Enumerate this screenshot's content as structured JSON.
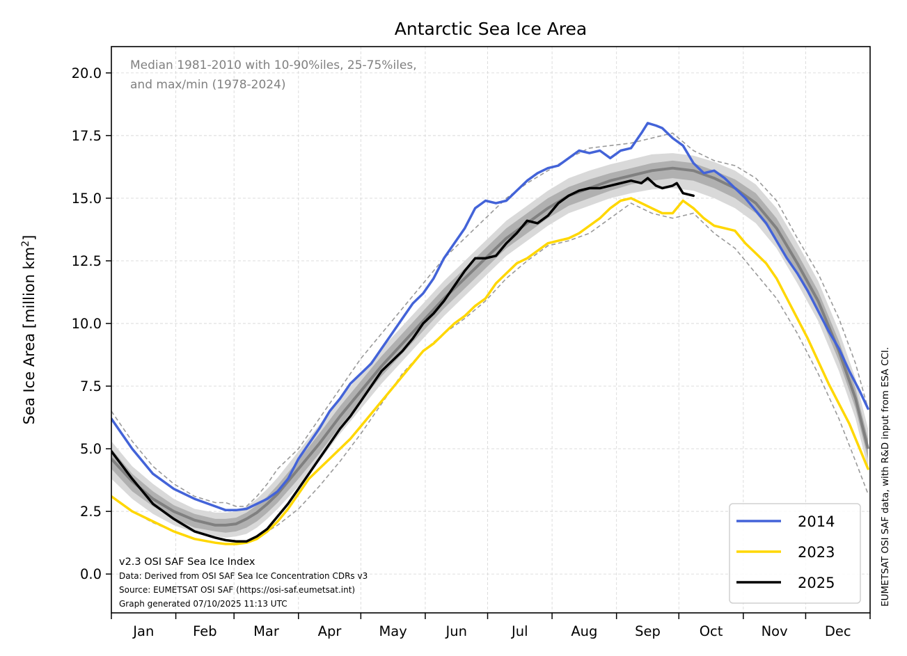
{
  "chart_data": {
    "type": "line",
    "title": "Antarctic Sea Ice Area",
    "ylabel": "Sea Ice Area [million km²]",
    "ylabel_main": "Sea Ice Area [million km",
    "ylabel_sup": "2",
    "ylabel_end": "]",
    "xlabel": "",
    "xlim_days": [
      0,
      365
    ],
    "ylim": [
      -1.55,
      21.05
    ],
    "yticks": [
      0.0,
      2.5,
      5.0,
      7.5,
      10.0,
      12.5,
      15.0,
      17.5,
      20.0
    ],
    "ytick_labels": [
      "0.0",
      "2.5",
      "5.0",
      "7.5",
      "10.0",
      "12.5",
      "15.0",
      "17.5",
      "20.0"
    ],
    "month_labels": [
      "Jan",
      "Feb",
      "Mar",
      "Apr",
      "May",
      "Jun",
      "Jul",
      "Aug",
      "Sep",
      "Oct",
      "Nov",
      "Dec"
    ],
    "month_start_days": [
      0,
      31,
      59,
      90,
      120,
      151,
      181,
      212,
      243,
      273,
      304,
      334,
      365
    ],
    "grid": true,
    "annotation": [
      "Median 1981-2010 with 10-90%iles, 25-75%iles,",
      "and max/min (1978-2024)"
    ],
    "credits": [
      "v2.3 OSI SAF Sea Ice Index",
      "Data: Derived from OSI SAF Sea Ice Concentration CDRs v3",
      "Source: EUMETSAT OSI SAF (https://osi-saf.eumetsat.int)",
      "Graph generated 07/10/2025 11:13 UTC"
    ],
    "side_text": "EUMETSAT OSI SAF data, with R&D input from ESA CCI.",
    "legend_position": "lower-right",
    "climatology": {
      "days": [
        0,
        10,
        20,
        30,
        40,
        50,
        55,
        60,
        65,
        70,
        75,
        80,
        90,
        100,
        110,
        120,
        130,
        140,
        150,
        160,
        170,
        180,
        190,
        200,
        210,
        220,
        230,
        240,
        250,
        260,
        270,
        280,
        290,
        300,
        310,
        320,
        330,
        340,
        350,
        358,
        364
      ],
      "median": [
        4.6,
        3.7,
        3.0,
        2.5,
        2.15,
        1.95,
        1.95,
        2.0,
        2.2,
        2.45,
        2.8,
        3.2,
        4.2,
        5.2,
        6.3,
        7.3,
        8.3,
        9.2,
        10.1,
        11.0,
        11.8,
        12.6,
        13.4,
        14.0,
        14.6,
        15.1,
        15.4,
        15.7,
        15.9,
        16.1,
        16.2,
        16.1,
        15.8,
        15.4,
        14.8,
        13.8,
        12.4,
        10.9,
        8.9,
        7.0,
        5.0
      ],
      "p25": [
        4.2,
        3.3,
        2.7,
        2.2,
        1.85,
        1.7,
        1.65,
        1.7,
        1.85,
        2.1,
        2.45,
        2.85,
        3.8,
        4.8,
        5.9,
        6.9,
        7.9,
        8.8,
        9.7,
        10.6,
        11.4,
        12.2,
        13.0,
        13.6,
        14.2,
        14.7,
        15.0,
        15.3,
        15.55,
        15.7,
        15.8,
        15.7,
        15.4,
        15.0,
        14.4,
        13.4,
        12.0,
        10.5,
        8.5,
        6.6,
        4.6
      ],
      "p75": [
        5.0,
        4.0,
        3.3,
        2.75,
        2.4,
        2.2,
        2.2,
        2.25,
        2.45,
        2.75,
        3.1,
        3.55,
        4.55,
        5.6,
        6.7,
        7.7,
        8.7,
        9.6,
        10.5,
        11.4,
        12.2,
        13.0,
        13.8,
        14.4,
        15.0,
        15.45,
        15.75,
        16.0,
        16.2,
        16.4,
        16.5,
        16.4,
        16.1,
        15.75,
        15.2,
        14.2,
        12.8,
        11.3,
        9.3,
        7.4,
        5.4
      ],
      "p10": [
        3.8,
        3.0,
        2.4,
        1.95,
        1.65,
        1.5,
        1.45,
        1.5,
        1.6,
        1.85,
        2.2,
        2.6,
        3.5,
        4.5,
        5.6,
        6.6,
        7.6,
        8.5,
        9.4,
        10.3,
        11.1,
        11.9,
        12.7,
        13.3,
        13.9,
        14.4,
        14.7,
        15.0,
        15.2,
        15.35,
        15.4,
        15.3,
        15.0,
        14.6,
        14.0,
        13.0,
        11.6,
        10.1,
        8.1,
        6.2,
        4.2
      ],
      "p90": [
        5.3,
        4.3,
        3.6,
        3.0,
        2.6,
        2.45,
        2.45,
        2.5,
        2.7,
        3.0,
        3.4,
        3.85,
        4.9,
        5.95,
        7.0,
        8.0,
        9.0,
        9.9,
        10.8,
        11.7,
        12.5,
        13.3,
        14.1,
        14.7,
        15.3,
        15.8,
        16.1,
        16.35,
        16.55,
        16.75,
        16.8,
        16.7,
        16.45,
        16.1,
        15.55,
        14.6,
        13.2,
        11.7,
        9.7,
        7.8,
        5.8
      ],
      "max": [
        6.5,
        5.3,
        4.3,
        3.6,
        3.1,
        2.85,
        2.85,
        2.7,
        2.7,
        3.1,
        3.6,
        4.2,
        5.0,
        6.2,
        7.4,
        8.6,
        9.6,
        10.6,
        11.6,
        12.6,
        13.4,
        14.2,
        15.0,
        15.6,
        16.1,
        16.6,
        17.0,
        17.1,
        17.2,
        17.4,
        17.6,
        16.9,
        16.5,
        16.3,
        15.8,
        14.9,
        13.4,
        12.0,
        10.2,
        8.4,
        6.6
      ],
      "min": [
        3.1,
        2.5,
        2.05,
        1.7,
        1.4,
        1.25,
        1.2,
        1.2,
        1.25,
        1.4,
        1.7,
        1.95,
        2.6,
        3.5,
        4.5,
        5.6,
        6.8,
        8.0,
        8.9,
        9.6,
        10.2,
        10.9,
        11.8,
        12.5,
        13.1,
        13.3,
        13.6,
        14.2,
        14.8,
        14.4,
        14.2,
        14.4,
        13.6,
        13.0,
        12.0,
        11.0,
        9.6,
        8.0,
        6.2,
        4.5,
        3.2
      ]
    },
    "series": [
      {
        "name": "2014",
        "color": "#4363d8",
        "days": [
          0,
          10,
          20,
          30,
          40,
          50,
          55,
          60,
          65,
          70,
          75,
          80,
          85,
          90,
          95,
          100,
          105,
          110,
          115,
          120,
          125,
          130,
          135,
          140,
          145,
          150,
          155,
          160,
          165,
          170,
          175,
          180,
          185,
          190,
          195,
          200,
          205,
          210,
          215,
          220,
          225,
          230,
          235,
          240,
          245,
          250,
          255,
          258,
          262,
          265,
          270,
          275,
          280,
          285,
          290,
          295,
          300,
          305,
          310,
          315,
          320,
          325,
          330,
          335,
          340,
          345,
          350,
          355,
          360,
          364
        ],
        "values": [
          6.2,
          5.0,
          4.0,
          3.4,
          3.0,
          2.7,
          2.55,
          2.55,
          2.6,
          2.8,
          3.0,
          3.3,
          3.8,
          4.6,
          5.2,
          5.8,
          6.5,
          7.0,
          7.6,
          8.0,
          8.4,
          9.0,
          9.6,
          10.2,
          10.8,
          11.2,
          11.8,
          12.6,
          13.2,
          13.8,
          14.6,
          14.9,
          14.8,
          14.9,
          15.3,
          15.7,
          16.0,
          16.2,
          16.3,
          16.6,
          16.9,
          16.8,
          16.9,
          16.6,
          16.9,
          17.0,
          17.6,
          18.0,
          17.9,
          17.8,
          17.4,
          17.1,
          16.4,
          16.0,
          16.1,
          15.8,
          15.4,
          15.0,
          14.5,
          14.0,
          13.3,
          12.6,
          12.0,
          11.3,
          10.5,
          9.7,
          9.0,
          8.1,
          7.3,
          6.6
        ]
      },
      {
        "name": "2023",
        "color": "#ffd700",
        "days": [
          0,
          10,
          20,
          30,
          40,
          50,
          55,
          60,
          65,
          70,
          75,
          80,
          85,
          90,
          95,
          100,
          105,
          110,
          115,
          120,
          125,
          130,
          135,
          140,
          145,
          150,
          155,
          160,
          165,
          170,
          175,
          180,
          185,
          190,
          195,
          200,
          205,
          210,
          215,
          220,
          225,
          230,
          235,
          240,
          245,
          250,
          255,
          260,
          265,
          270,
          275,
          280,
          285,
          290,
          295,
          300,
          305,
          310,
          315,
          320,
          325,
          330,
          335,
          340,
          345,
          350,
          355,
          360,
          364
        ],
        "values": [
          3.1,
          2.5,
          2.1,
          1.7,
          1.4,
          1.25,
          1.2,
          1.2,
          1.25,
          1.4,
          1.7,
          2.1,
          2.6,
          3.2,
          3.8,
          4.2,
          4.6,
          5.0,
          5.4,
          5.9,
          6.4,
          6.9,
          7.4,
          7.9,
          8.4,
          8.9,
          9.2,
          9.6,
          10.0,
          10.3,
          10.7,
          11.0,
          11.6,
          12.0,
          12.4,
          12.6,
          12.9,
          13.2,
          13.3,
          13.4,
          13.6,
          13.9,
          14.2,
          14.6,
          14.9,
          15.0,
          14.8,
          14.6,
          14.4,
          14.4,
          14.9,
          14.6,
          14.2,
          13.9,
          13.8,
          13.7,
          13.2,
          12.8,
          12.4,
          11.8,
          11.0,
          10.2,
          9.4,
          8.5,
          7.6,
          6.8,
          6.0,
          5.0,
          4.2
        ]
      },
      {
        "name": "2025",
        "color": "#000000",
        "days": [
          0,
          10,
          20,
          30,
          40,
          50,
          55,
          60,
          65,
          70,
          75,
          80,
          85,
          90,
          95,
          100,
          105,
          110,
          115,
          120,
          125,
          130,
          135,
          140,
          145,
          150,
          155,
          160,
          165,
          170,
          175,
          180,
          185,
          190,
          195,
          200,
          205,
          210,
          215,
          220,
          225,
          230,
          235,
          240,
          245,
          250,
          255,
          258,
          262,
          265,
          270,
          272,
          275,
          280
        ],
        "values": [
          4.9,
          3.8,
          2.8,
          2.2,
          1.7,
          1.45,
          1.35,
          1.3,
          1.3,
          1.5,
          1.8,
          2.3,
          2.8,
          3.4,
          4.0,
          4.6,
          5.2,
          5.8,
          6.3,
          6.9,
          7.5,
          8.1,
          8.5,
          8.9,
          9.4,
          10.0,
          10.4,
          10.9,
          11.5,
          12.1,
          12.6,
          12.6,
          12.7,
          13.2,
          13.6,
          14.1,
          14.0,
          14.3,
          14.8,
          15.1,
          15.3,
          15.4,
          15.4,
          15.5,
          15.6,
          15.7,
          15.6,
          15.8,
          15.5,
          15.4,
          15.5,
          15.6,
          15.2,
          15.1
        ]
      }
    ]
  }
}
